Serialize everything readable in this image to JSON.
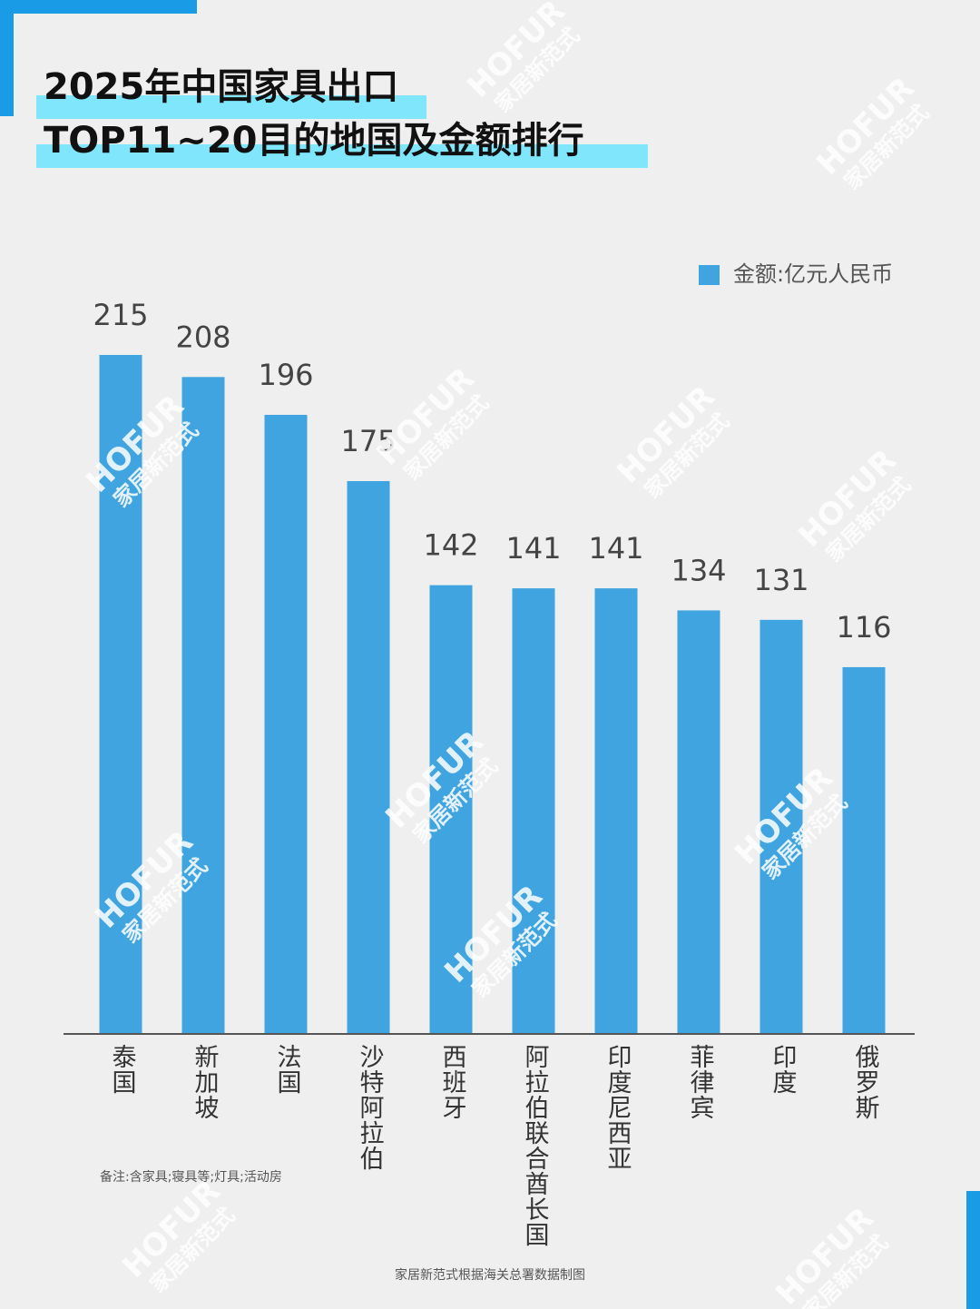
{
  "chart_data": {
    "type": "bar",
    "title": [
      "2025年中国家具出口",
      "TOP11~20目的地国及金额排行"
    ],
    "categories": [
      "泰国",
      "新加坡",
      "法国",
      "沙特阿拉伯",
      "西班牙",
      "阿拉伯联合酋长国",
      "印度尼西亚",
      "菲律宾",
      "印度",
      "俄罗斯"
    ],
    "series": [
      {
        "name": "金额:亿元人民币",
        "color": "#3fa4df",
        "values": [
          215,
          208,
          196,
          175,
          142,
          141,
          141,
          134,
          131,
          116
        ]
      }
    ],
    "legend": "top-right",
    "note": "备注:含家具;寝具等;灯具;活动房",
    "source": "家居新范式根据海关总署数据制图",
    "watermark": [
      "HOFUR",
      "家居新范式"
    ]
  }
}
